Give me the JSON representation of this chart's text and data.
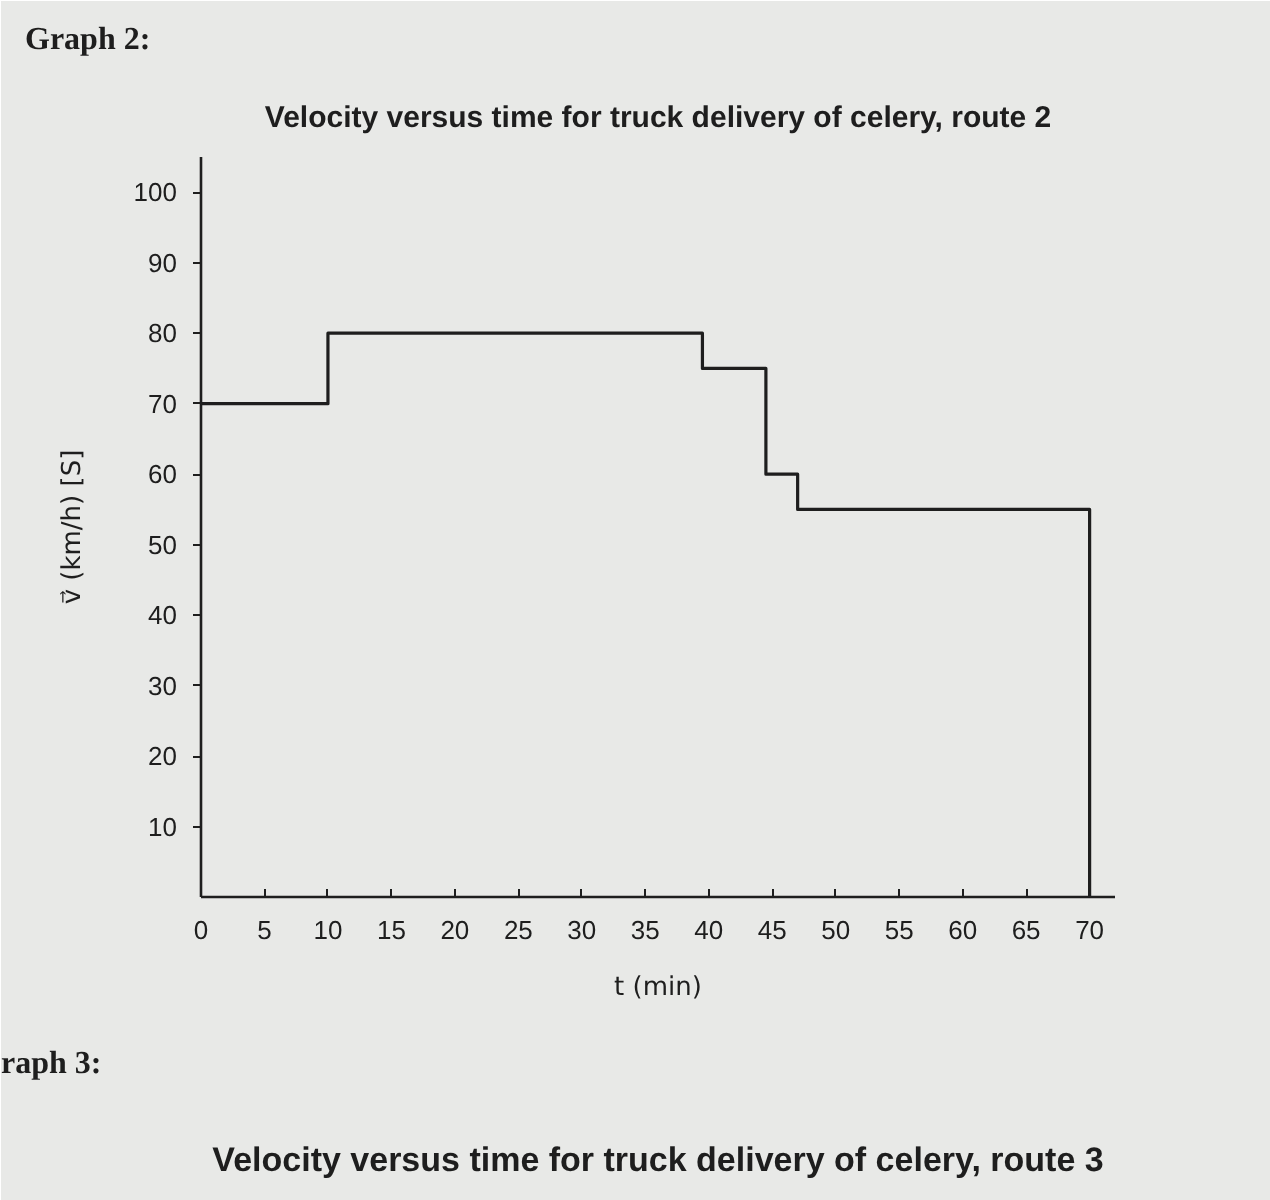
{
  "chart_data": {
    "type": "step",
    "title": "Velocity versus time for truck delivery of celery, route 2",
    "xlabel": "t (min)",
    "ylabel": "v⃗ (km/h) [S]",
    "x": [
      0,
      10,
      39.5,
      44.5,
      47,
      70
    ],
    "values": [
      70,
      80,
      75,
      60,
      55,
      0
    ],
    "color": "#1e1e1e",
    "line_style": "solid",
    "xlim": [
      0,
      72
    ],
    "ylim": [
      0,
      105
    ],
    "xticks": [
      0,
      5,
      10,
      15,
      20,
      25,
      30,
      35,
      40,
      45,
      50,
      55,
      60,
      65,
      70
    ],
    "yticks": [
      10,
      20,
      30,
      40,
      50,
      60,
      70,
      80,
      90,
      100
    ],
    "annotations": [
      "Graph 2:",
      "raph 3:",
      "Velocity versus time for truck delivery of celery, route 3"
    ]
  }
}
